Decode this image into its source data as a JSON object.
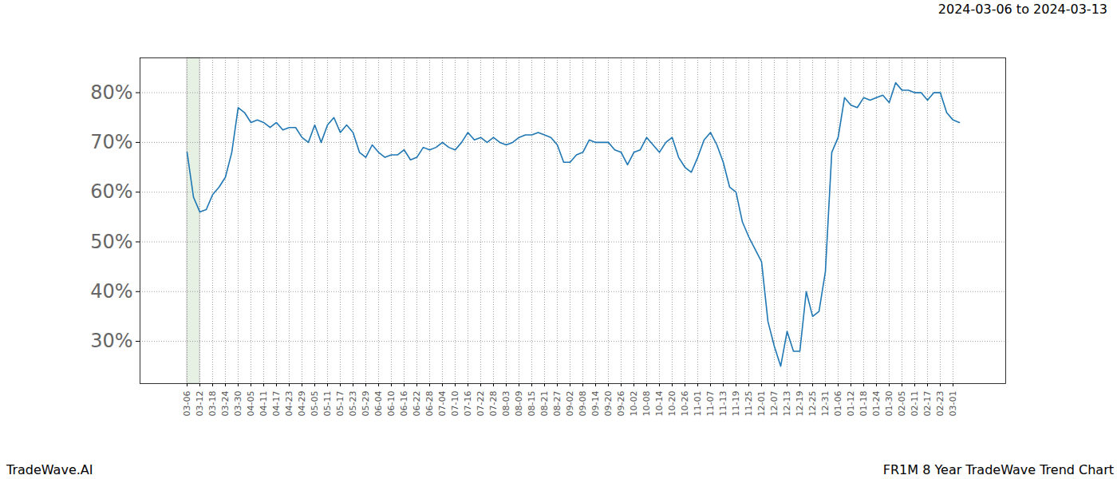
{
  "chart_data": {
    "type": "line",
    "title": "2024-03-06 to 2024-03-13",
    "source": "TradeWave.AI",
    "caption": "FR1M 8 Year TradeWave Trend Chart",
    "categories": [
      "03-06",
      null,
      "03-12",
      null,
      "03-18",
      null,
      "03-24",
      null,
      "03-30",
      null,
      "04-05",
      null,
      "04-11",
      null,
      "04-17",
      null,
      "04-23",
      null,
      "04-29",
      null,
      "05-05",
      null,
      "05-11",
      null,
      "05-17",
      null,
      "05-23",
      null,
      "05-29",
      null,
      "06-04",
      null,
      "06-10",
      null,
      "06-16",
      null,
      "06-22",
      null,
      "06-28",
      null,
      "07-04",
      null,
      "07-10",
      null,
      "07-16",
      null,
      "07-22",
      null,
      "07-28",
      null,
      "08-03",
      null,
      "08-09",
      null,
      "08-15",
      null,
      "08-21",
      null,
      "08-27",
      null,
      "09-02",
      null,
      "09-08",
      null,
      "09-14",
      null,
      "09-20",
      null,
      "09-26",
      null,
      "10-02",
      null,
      "10-08",
      null,
      "10-14",
      null,
      "10-20",
      null,
      "10-26",
      null,
      "11-01",
      null,
      "11-07",
      null,
      "11-13",
      null,
      "11-19",
      null,
      "11-25",
      null,
      "12-01",
      null,
      "12-07",
      null,
      "12-13",
      null,
      "12-19",
      null,
      "12-25",
      null,
      "12-31",
      null,
      "01-06",
      null,
      "01-12",
      null,
      "01-18",
      null,
      "01-24",
      null,
      "01-30",
      null,
      "02-05",
      null,
      "02-11",
      null,
      "02-17",
      null,
      "02-23",
      null,
      "03-01",
      null
    ],
    "values": [
      68,
      59,
      56,
      56.5,
      59.5,
      61,
      63,
      68,
      77,
      76,
      74,
      74.5,
      74,
      73,
      74,
      72.5,
      73,
      73,
      71,
      70,
      73.5,
      70,
      73.5,
      75,
      72,
      73.5,
      72,
      68,
      67,
      69.5,
      68,
      67,
      67.5,
      67.5,
      68.5,
      66.5,
      67,
      69,
      68.5,
      69,
      70,
      69,
      68.5,
      70,
      72,
      70.5,
      71,
      70,
      71,
      70,
      69.5,
      70,
      71,
      71.5,
      71.5,
      72,
      71.5,
      71,
      69.5,
      66,
      66,
      67.5,
      68,
      70.5,
      70,
      70,
      70,
      68.5,
      68,
      65.5,
      68,
      68.5,
      71,
      69.5,
      68,
      70,
      71,
      67,
      65,
      64,
      67,
      70.5,
      72,
      69.5,
      66,
      61,
      60,
      54,
      51,
      48.5,
      46,
      34,
      29,
      25,
      32,
      28,
      28,
      40,
      35,
      36,
      44,
      68,
      71,
      79,
      77.5,
      77,
      79,
      78.5,
      79,
      79.5,
      78,
      82,
      80.5,
      80.5,
      80,
      80,
      78.5,
      80,
      80,
      76,
      74.5,
      74
    ],
    "color": "#1f77b4",
    "highlight": [
      "03-06",
      "03-12"
    ],
    "ylim": [
      21.5,
      87
    ],
    "yticks": [
      {
        "value": 30,
        "label": "30%"
      },
      {
        "value": 40,
        "label": "40%"
      },
      {
        "value": 50,
        "label": "50%"
      },
      {
        "value": 60,
        "label": "60%"
      },
      {
        "value": 70,
        "label": "70%"
      },
      {
        "value": 80,
        "label": "80%"
      }
    ],
    "grid": true
  }
}
